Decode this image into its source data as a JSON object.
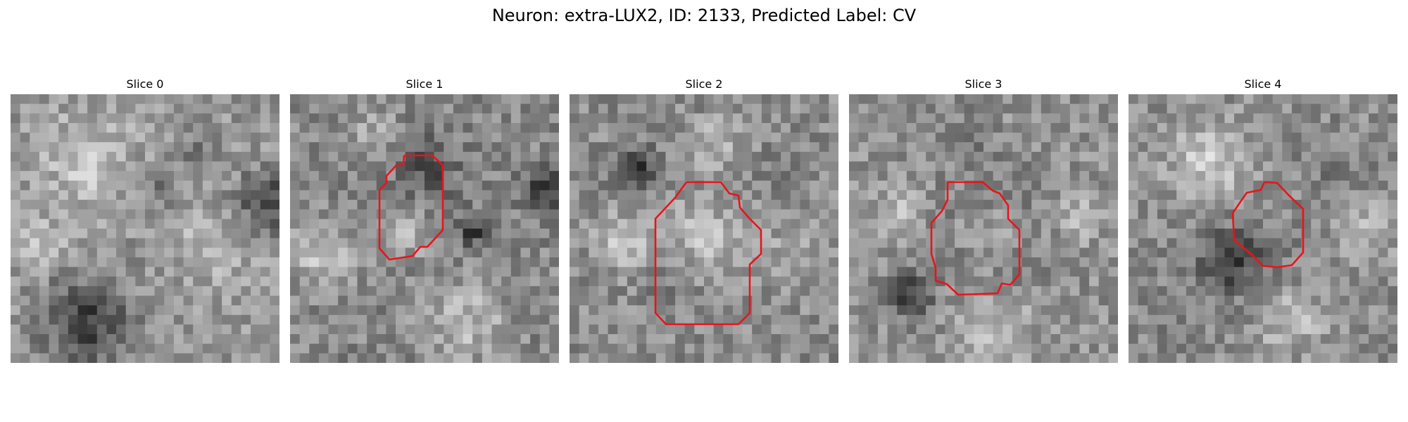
{
  "figure": {
    "title": "Neuron: extra-LUX2, ID: 2133, Predicted Label: CV",
    "contour_color": "#e8141b"
  },
  "slices": [
    {
      "label": "Slice 0",
      "has_contour": false
    },
    {
      "label": "Slice 1",
      "has_contour": true
    },
    {
      "label": "Slice 2",
      "has_contour": true
    },
    {
      "label": "Slice 3",
      "has_contour": true
    },
    {
      "label": "Slice 4",
      "has_contour": true
    }
  ]
}
